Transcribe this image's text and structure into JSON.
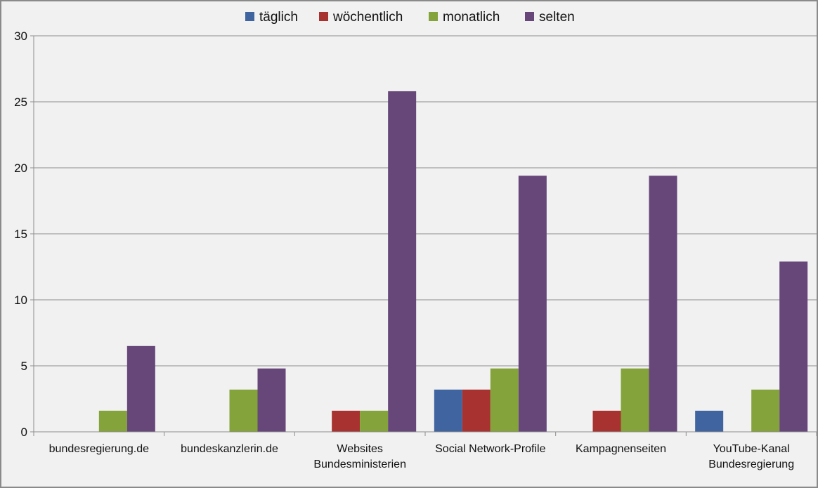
{
  "chart_data": {
    "type": "bar",
    "title": "",
    "xlabel": "",
    "ylabel": "",
    "ylim": [
      0,
      30
    ],
    "yticks": [
      0,
      5,
      10,
      15,
      20,
      25,
      30
    ],
    "grid": true,
    "legend_position": "top",
    "categories": [
      [
        "bundesregierung.de"
      ],
      [
        "bundeskanzlerin.de"
      ],
      [
        "Websites",
        "Bundesministerien"
      ],
      [
        "Social Network-Profile"
      ],
      [
        "Kampagnenseiten"
      ],
      [
        "YouTube-Kanal",
        "Bundesregierung"
      ]
    ],
    "series": [
      {
        "name": "täglich",
        "color": "#3f64a0",
        "values": [
          0,
          0,
          0,
          3.2,
          0,
          1.6
        ]
      },
      {
        "name": "wöchentlich",
        "color": "#a8322f",
        "values": [
          0,
          0,
          1.6,
          3.2,
          1.6,
          0
        ]
      },
      {
        "name": "monatlich",
        "color": "#84a33a",
        "values": [
          1.6,
          3.2,
          1.6,
          4.8,
          4.8,
          3.2
        ]
      },
      {
        "name": "selten",
        "color": "#67467a",
        "values": [
          6.5,
          4.8,
          25.8,
          19.4,
          19.4,
          12.9
        ]
      }
    ]
  }
}
